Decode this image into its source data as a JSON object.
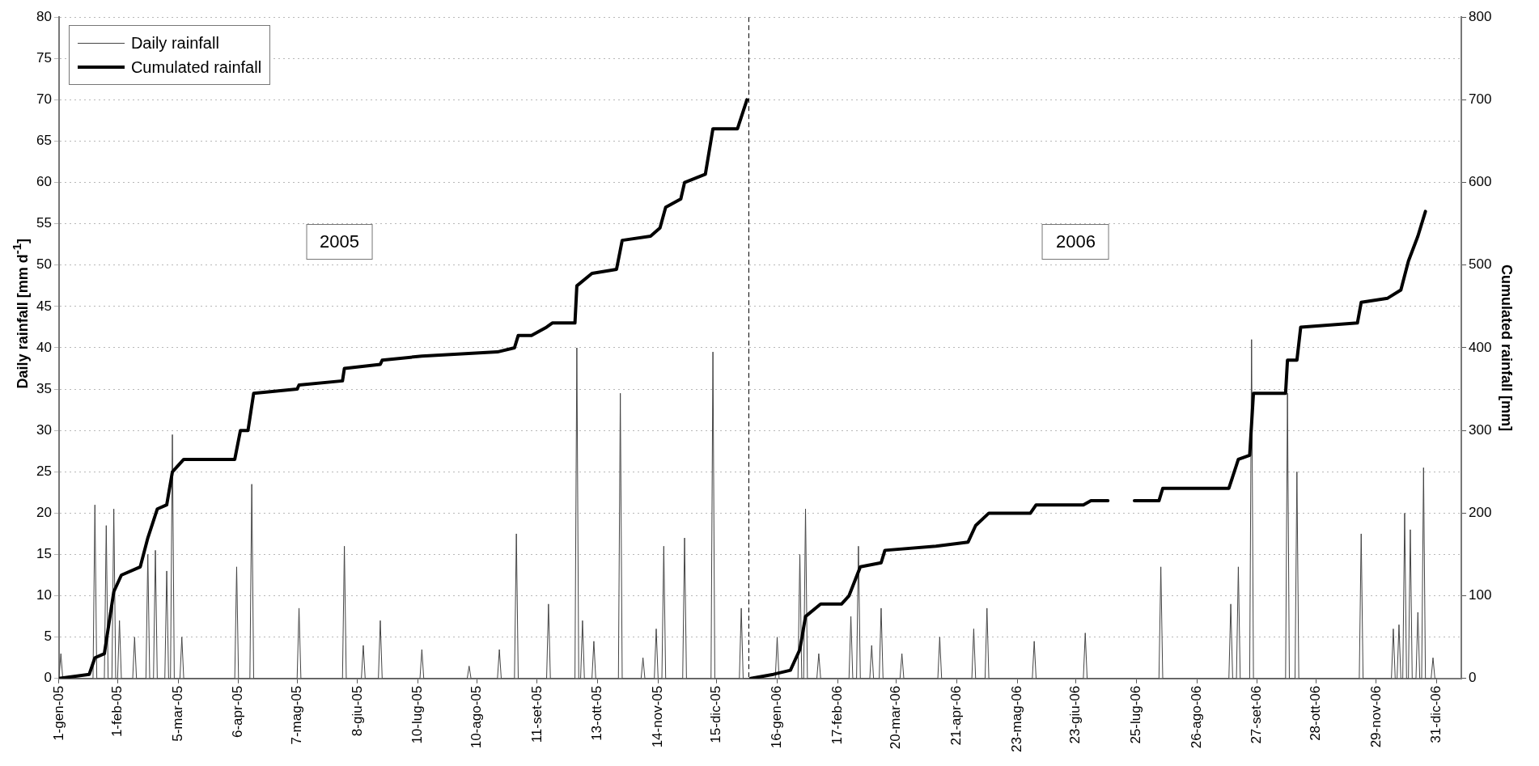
{
  "chart_data": {
    "type": "line",
    "ylabel": "Daily rainfall [mm d$^{-1}$]",
    "y2label": "Cumulated rainfall [mm]",
    "annotations": [
      "2005",
      "2006"
    ],
    "xlim": [
      "2005-01-01",
      "2007-01-13"
    ],
    "xticks": [
      {
        "value": "2005-01-01",
        "label": "1-gen-05"
      },
      {
        "value": "2005-02-01",
        "label": "1-feb-05"
      },
      {
        "value": "2005-03-05",
        "label": "5-mar-05"
      },
      {
        "value": "2005-04-06",
        "label": "6-apr-05"
      },
      {
        "value": "2005-05-07",
        "label": "7-mag-05"
      },
      {
        "value": "2005-06-08",
        "label": "8-giu-05"
      },
      {
        "value": "2005-07-10",
        "label": "10-lug-05"
      },
      {
        "value": "2005-08-10",
        "label": "10-ago-05"
      },
      {
        "value": "2005-09-11",
        "label": "11-set-05"
      },
      {
        "value": "2005-10-13",
        "label": "13-ott-05"
      },
      {
        "value": "2005-11-14",
        "label": "14-nov-05"
      },
      {
        "value": "2005-12-15",
        "label": "15-dic-05"
      },
      {
        "value": "2006-01-16",
        "label": "16-gen-06"
      },
      {
        "value": "2006-02-17",
        "label": "17-feb-06"
      },
      {
        "value": "2006-03-20",
        "label": "20-mar-06"
      },
      {
        "value": "2006-04-21",
        "label": "21-apr-06"
      },
      {
        "value": "2006-05-23",
        "label": "23-mag-06"
      },
      {
        "value": "2006-06-23",
        "label": "23-giu-06"
      },
      {
        "value": "2006-07-25",
        "label": "25-lug-06"
      },
      {
        "value": "2006-08-26",
        "label": "26-ago-06"
      },
      {
        "value": "2006-09-27",
        "label": "27-set-06"
      },
      {
        "value": "2006-10-28",
        "label": "28-ott-06"
      },
      {
        "value": "2006-11-29",
        "label": "29-nov-06"
      },
      {
        "value": "2006-12-31",
        "label": "31-dic-06"
      }
    ],
    "ylim": [
      0,
      80
    ],
    "yticks": [
      0,
      5,
      10,
      15,
      20,
      25,
      30,
      35,
      40,
      45,
      50,
      55,
      60,
      65,
      70,
      75,
      80
    ],
    "y2lim": [
      0,
      800
    ],
    "y2ticks": [
      0,
      100,
      200,
      300,
      400,
      500,
      600,
      700,
      800
    ],
    "grid": "y",
    "legend": "top left",
    "marker": "none",
    "line_style": "solid",
    "ref_lines": [
      {
        "axis": "x",
        "value": "2006-01-01",
        "color": "#000000",
        "line_style": "dashed"
      }
    ],
    "series": [
      {
        "name": "Daily rainfall",
        "color": "#444444",
        "x": [
          "2005-01-01",
          "2005-01-02",
          "2005-01-03",
          "2005-01-19",
          "2005-01-20",
          "2005-01-21",
          "2005-01-25",
          "2005-01-26",
          "2005-01-27",
          "2005-01-29",
          "2005-01-30",
          "2005-01-31",
          "2005-02-01",
          "2005-02-02",
          "2005-02-03",
          "2005-02-09",
          "2005-02-10",
          "2005-02-11",
          "2005-02-16",
          "2005-02-17",
          "2005-02-18",
          "2005-02-20",
          "2005-02-21",
          "2005-02-22",
          "2005-02-26",
          "2005-02-27",
          "2005-02-28",
          "2005-03-01",
          "2005-03-02",
          "2005-03-03",
          "2005-03-06",
          "2005-03-07",
          "2005-03-08",
          "2005-04-04",
          "2005-04-05",
          "2005-04-06",
          "2005-04-12",
          "2005-04-13",
          "2005-04-14",
          "2005-05-07",
          "2005-05-08",
          "2005-05-09",
          "2005-05-31",
          "2005-06-01",
          "2005-06-02",
          "2005-06-10",
          "2005-06-11",
          "2005-06-12",
          "2005-06-19",
          "2005-06-20",
          "2005-06-21",
          "2005-07-11",
          "2005-07-12",
          "2005-07-13",
          "2005-08-05",
          "2005-08-06",
          "2005-08-07",
          "2005-08-21",
          "2005-08-22",
          "2005-08-23",
          "2005-08-30",
          "2005-08-31",
          "2005-09-01",
          "2005-09-16",
          "2005-09-17",
          "2005-09-18",
          "2005-10-01",
          "2005-10-02",
          "2005-10-03",
          "2005-10-04",
          "2005-10-05",
          "2005-10-06",
          "2005-10-10",
          "2005-10-11",
          "2005-10-12",
          "2005-10-24",
          "2005-10-25",
          "2005-10-26",
          "2005-11-05",
          "2005-11-06",
          "2005-11-07",
          "2005-11-12",
          "2005-11-13",
          "2005-11-14",
          "2005-11-16",
          "2005-11-17",
          "2005-11-18",
          "2005-11-27",
          "2005-11-28",
          "2005-11-29",
          "2005-12-12",
          "2005-12-13",
          "2005-12-14",
          "2005-12-27",
          "2005-12-28",
          "2005-12-29",
          "2006-01-15",
          "2006-01-16",
          "2006-01-17",
          "2006-01-27",
          "2006-01-28",
          "2006-01-29",
          "2006-01-30",
          "2006-01-31",
          "2006-02-01",
          "2006-02-06",
          "2006-02-07",
          "2006-02-08",
          "2006-02-23",
          "2006-02-24",
          "2006-02-25",
          "2006-02-27",
          "2006-02-28",
          "2006-03-01",
          "2006-03-06",
          "2006-03-07",
          "2006-03-08",
          "2006-03-11",
          "2006-03-12",
          "2006-03-13",
          "2006-03-22",
          "2006-03-23",
          "2006-03-24",
          "2006-04-11",
          "2006-04-12",
          "2006-04-13",
          "2006-04-29",
          "2006-04-30",
          "2006-05-01",
          "2006-05-06",
          "2006-05-07",
          "2006-05-08",
          "2006-05-31",
          "2006-06-01",
          "2006-06-02",
          "2006-06-27",
          "2006-06-28",
          "2006-06-29",
          "2006-08-06",
          "2006-08-07",
          "2006-08-08",
          "2006-09-12",
          "2006-09-13",
          "2006-09-14",
          "2006-09-16",
          "2006-09-17",
          "2006-09-18",
          "2006-09-23",
          "2006-09-24",
          "2006-09-25",
          "2006-10-12",
          "2006-10-13",
          "2006-10-14",
          "2006-10-17",
          "2006-10-18",
          "2006-10-19",
          "2006-11-20",
          "2006-11-21",
          "2006-11-22",
          "2006-12-07",
          "2006-12-08",
          "2006-12-09",
          "2006-12-10",
          "2006-12-11",
          "2006-12-12",
          "2006-12-13",
          "2006-12-14",
          "2006-12-15",
          "2006-12-16",
          "2006-12-17",
          "2006-12-18",
          "2006-12-20",
          "2006-12-21",
          "2006-12-22",
          "2006-12-23",
          "2006-12-24",
          "2006-12-25",
          "2006-12-28",
          "2006-12-29",
          "2006-12-30",
          "2006-12-31"
        ],
        "values": [
          0,
          3,
          0,
          0,
          21,
          0,
          0,
          18.5,
          0,
          0,
          20.5,
          0,
          0,
          7,
          0,
          0,
          5,
          0,
          0,
          15,
          0,
          0,
          15.5,
          0,
          0,
          13,
          0,
          0,
          29.5,
          0,
          0,
          5,
          0,
          0,
          13.5,
          0,
          0,
          23.5,
          0,
          0,
          8.5,
          0,
          0,
          16,
          0,
          0,
          4,
          0,
          0,
          7,
          0,
          0,
          3.5,
          0,
          0,
          1.5,
          0,
          0,
          3.5,
          0,
          0,
          17.5,
          0,
          0,
          9,
          0,
          0,
          40,
          0,
          0,
          7,
          0,
          0,
          4.5,
          0,
          0,
          34.5,
          0,
          0,
          2.5,
          0,
          0,
          6,
          0,
          0,
          16,
          0,
          0,
          17,
          0,
          0,
          39.5,
          0,
          0,
          8.5,
          0,
          0,
          5,
          0,
          0,
          15,
          0,
          0,
          20.5,
          0,
          0,
          3,
          0,
          0,
          7.5,
          0,
          0,
          16,
          0,
          0,
          4,
          0,
          0,
          8.5,
          0,
          0,
          3,
          0,
          0,
          5,
          0,
          0,
          6,
          0,
          0,
          8.5,
          0,
          0,
          4.5,
          0,
          0,
          5.5,
          0,
          0,
          13.5,
          0,
          0,
          9,
          0,
          0,
          13.5,
          0,
          0,
          41,
          0,
          0,
          34.5,
          0,
          0,
          25,
          0,
          0,
          17.5,
          0,
          0,
          6,
          0,
          0,
          6.5,
          0,
          0,
          20,
          0,
          0,
          18,
          0,
          0,
          8,
          0,
          0,
          25.5,
          0,
          0,
          2.5,
          0,
          0
        ]
      },
      {
        "name": "Cumulated rainfall",
        "color": "#000000",
        "axis": "y2",
        "x": [
          "2005-01-01",
          "2005-01-17",
          "2005-01-20",
          "2005-01-25",
          "2005-01-30",
          "2005-02-03",
          "2005-02-13",
          "2005-02-17",
          "2005-02-22",
          "2005-02-27",
          "2005-03-02",
          "2005-03-08",
          "2005-04-04",
          "2005-04-07",
          "2005-04-11",
          "2005-04-14",
          "2005-05-07",
          "2005-05-08",
          "2005-05-31",
          "2005-06-01",
          "2005-06-20",
          "2005-06-21",
          "2005-07-12",
          "2005-08-21",
          "2005-08-30",
          "2005-09-01",
          "2005-09-08",
          "2005-09-16",
          "2005-09-19",
          "2005-10-01",
          "2005-10-02",
          "2005-10-10",
          "2005-10-23",
          "2005-10-26",
          "2005-11-10",
          "2005-11-15",
          "2005-11-18",
          "2005-11-26",
          "2005-11-28",
          "2005-12-09",
          "2005-12-13",
          "2005-12-26",
          "2005-12-31",
          "2006-01-01",
          "2006-01-02",
          "2006-01-14",
          "2006-01-23",
          "2006-01-28",
          "2006-01-31",
          "2006-02-08",
          "2006-02-19",
          "2006-02-23",
          "2006-03-01",
          "2006-03-12",
          "2006-03-14",
          "2006-04-10",
          "2006-04-27",
          "2006-05-01",
          "2006-05-08",
          "2006-05-30",
          "2006-06-02",
          "2006-06-27",
          "2006-07-01",
          "2006-07-10",
          "2006-07-17",
          "2006-07-24",
          "2006-08-06",
          "2006-08-08",
          "2006-09-12",
          "2006-09-17",
          "2006-09-23",
          "2006-09-25",
          "2006-10-12",
          "2006-10-13",
          "2006-10-18",
          "2006-10-20",
          "2006-11-19",
          "2006-11-21",
          "2006-12-05",
          "2006-12-12",
          "2006-12-16",
          "2006-12-21",
          "2006-12-25"
        ],
        "values": [
          0,
          5,
          25,
          30,
          105,
          125,
          135,
          170,
          205,
          210,
          250,
          265,
          265,
          300,
          300,
          345,
          350,
          355,
          360,
          375,
          380,
          385,
          390,
          395,
          400,
          415,
          415,
          425,
          430,
          430,
          475,
          490,
          495,
          530,
          535,
          545,
          570,
          580,
          600,
          610,
          665,
          665,
          700,
          null,
          0,
          5,
          10,
          35,
          75,
          90,
          90,
          100,
          135,
          140,
          155,
          160,
          165,
          185,
          200,
          200,
          210,
          210,
          215,
          215,
          null,
          215,
          215,
          230,
          230,
          265,
          270,
          345,
          345,
          385,
          385,
          425,
          430,
          455,
          460,
          470,
          505,
          535,
          565
        ]
      }
    ]
  }
}
